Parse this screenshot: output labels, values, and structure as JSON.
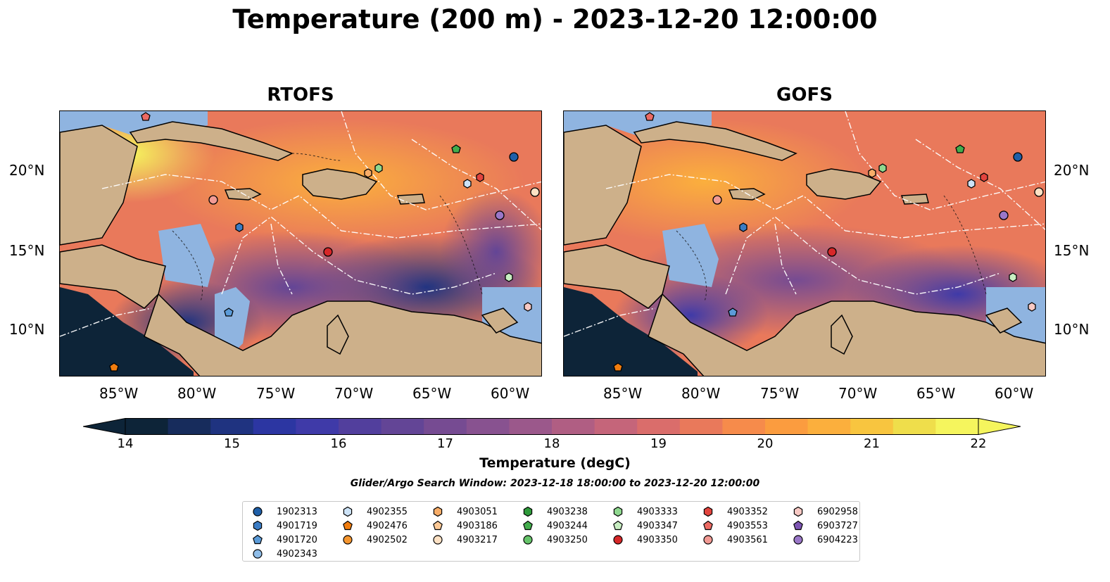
{
  "title": "Temperature (200 m) - 2023-12-20 12:00:00",
  "panels": {
    "left_title": "RTOFS",
    "right_title": "GOFS"
  },
  "axes": {
    "lon_ticks": [
      "85°W",
      "80°W",
      "75°W",
      "70°W",
      "65°W",
      "60°W"
    ],
    "lat_ticks": [
      "20°N",
      "15°N",
      "10°N"
    ]
  },
  "colorbar": {
    "label": "Temperature (degC)",
    "min": 14,
    "max": 22,
    "step": 0.5,
    "ticks": [
      "14",
      "15",
      "16",
      "17",
      "18",
      "19",
      "20",
      "21",
      "22"
    ],
    "colors": [
      "#0d2438",
      "#172c5c",
      "#1f3380",
      "#2c36a2",
      "#3f3aa8",
      "#523f9d",
      "#634596",
      "#764b92",
      "#885290",
      "#9b588b",
      "#b05e83",
      "#c5657a",
      "#da6d6b",
      "#e9795b",
      "#f68b4b",
      "#fb9c3f",
      "#fbaf3d",
      "#f8c53f",
      "#efde4b",
      "#f5f55d"
    ]
  },
  "search_window": "Glider/Argo Search Window: 2023-12-18 18:00:00 to 2023-12-20 12:00:00",
  "legend": {
    "columns": [
      [
        {
          "id": "1902313",
          "marker": "circle",
          "color": "#1f5fa8"
        },
        {
          "id": "4901719",
          "marker": "hexagon",
          "color": "#3b7cc4"
        },
        {
          "id": "4901720",
          "marker": "pentagon",
          "color": "#5b9bd8"
        },
        {
          "id": "4902343",
          "marker": "circle",
          "color": "#8fbde8"
        }
      ],
      [
        {
          "id": "4902355",
          "marker": "hexagon",
          "color": "#cde3f7"
        },
        {
          "id": "4902476",
          "marker": "pentagon",
          "color": "#f07d0f"
        },
        {
          "id": "4902502",
          "marker": "circle",
          "color": "#f5962f"
        }
      ],
      [
        {
          "id": "4903051",
          "marker": "hexagon",
          "color": "#f8ad68"
        },
        {
          "id": "4903186",
          "marker": "pentagon",
          "color": "#fcc996"
        },
        {
          "id": "4903217",
          "marker": "circle",
          "color": "#fde1c4"
        }
      ],
      [
        {
          "id": "4903238",
          "marker": "hexagon",
          "color": "#2e9a3a"
        },
        {
          "id": "4903244",
          "marker": "pentagon",
          "color": "#43ad4d"
        },
        {
          "id": "4903250",
          "marker": "circle",
          "color": "#66c46a"
        }
      ],
      [
        {
          "id": "4903333",
          "marker": "hexagon",
          "color": "#8fd88f"
        },
        {
          "id": "4903347",
          "marker": "pentagon",
          "color": "#c8eec2"
        },
        {
          "id": "4903350",
          "marker": "circle",
          "color": "#d62728"
        }
      ],
      [
        {
          "id": "4903352",
          "marker": "hexagon",
          "color": "#e2443e"
        },
        {
          "id": "4903553",
          "marker": "pentagon",
          "color": "#ec6a63"
        },
        {
          "id": "4903561",
          "marker": "circle",
          "color": "#f29a94"
        }
      ],
      [
        {
          "id": "6902958",
          "marker": "hexagon",
          "color": "#f8c9c4"
        },
        {
          "id": "6903727",
          "marker": "pentagon",
          "color": "#7d55b3"
        },
        {
          "id": "6904223",
          "marker": "circle",
          "color": "#9a77c8"
        }
      ]
    ]
  }
}
